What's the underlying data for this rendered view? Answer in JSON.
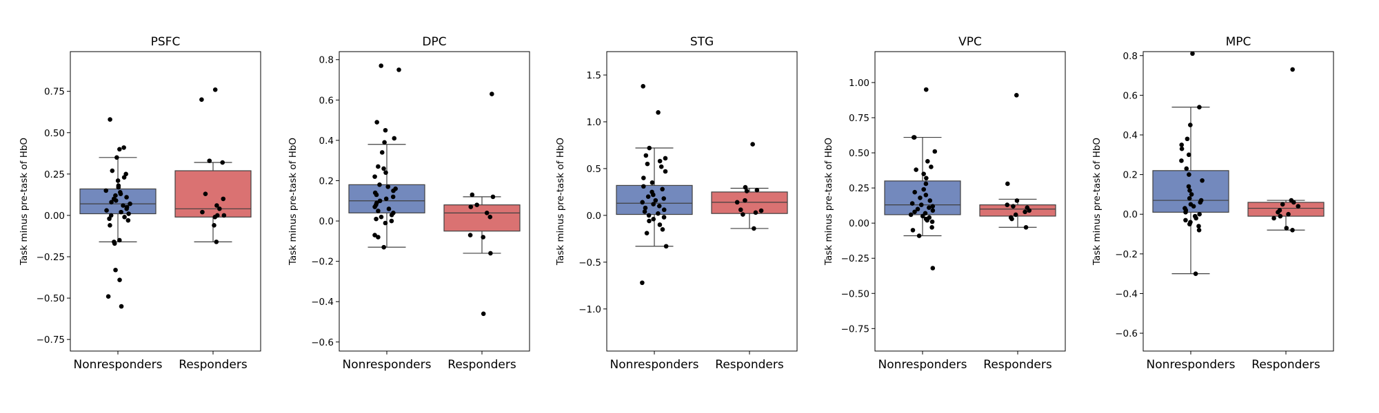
{
  "chart_data": [
    {
      "type": "box",
      "title": "PSFC",
      "ylabel": "Task minus pre-task of HbO",
      "categories": [
        "Nonresponders",
        "Responders"
      ],
      "ylim": [
        -0.82,
        0.99
      ],
      "yticks": [
        -0.75,
        -0.5,
        -0.25,
        0.0,
        0.25,
        0.5,
        0.75
      ],
      "ytick_labels": [
        "−0.75",
        "−0.50",
        "−0.25",
        "0.00",
        "0.25",
        "0.50",
        "0.75"
      ],
      "grid": false,
      "groups": [
        {
          "name": "Nonresponders",
          "color": "#7389bd",
          "box": {
            "q1": 0.01,
            "median": 0.07,
            "q3": 0.16,
            "whisker_low": -0.16,
            "whisker_high": 0.35
          },
          "points": [
            0.58,
            0.41,
            0.4,
            0.35,
            0.27,
            0.25,
            0.23,
            0.21,
            0.18,
            0.17,
            0.15,
            0.14,
            0.13,
            0.12,
            0.11,
            0.1,
            0.09,
            0.08,
            0.07,
            0.06,
            0.05,
            0.04,
            0.03,
            0.02,
            0.01,
            0.0,
            -0.01,
            -0.02,
            -0.03,
            -0.06,
            -0.16,
            -0.15,
            -0.17,
            -0.33,
            -0.39,
            -0.49,
            -0.55
          ]
        },
        {
          "name": "Responders",
          "color": "#da7272",
          "box": {
            "q1": -0.01,
            "median": 0.04,
            "q3": 0.27,
            "whisker_low": -0.16,
            "whisker_high": 0.32
          },
          "points": [
            0.76,
            0.7,
            0.33,
            0.32,
            0.13,
            0.1,
            0.06,
            0.04,
            0.02,
            0.0,
            0.0,
            -0.01,
            -0.06,
            -0.16
          ]
        }
      ]
    },
    {
      "type": "box",
      "title": "DPC",
      "ylabel": "Task minus pre-task of HbO",
      "categories": [
        "Nonresponders",
        "Responders"
      ],
      "ylim": [
        -0.645,
        0.84
      ],
      "yticks": [
        -0.6,
        -0.4,
        -0.2,
        0.0,
        0.2,
        0.4,
        0.6,
        0.8
      ],
      "ytick_labels": [
        "−0.6",
        "−0.4",
        "−0.2",
        "0.0",
        "0.2",
        "0.4",
        "0.6",
        "0.8"
      ],
      "grid": false,
      "groups": [
        {
          "name": "Nonresponders",
          "color": "#7389bd",
          "box": {
            "q1": 0.04,
            "median": 0.1,
            "q3": 0.18,
            "whisker_low": -0.13,
            "whisker_high": 0.38
          },
          "points": [
            0.77,
            0.75,
            0.49,
            0.45,
            0.41,
            0.39,
            0.34,
            0.27,
            0.26,
            0.24,
            0.22,
            0.18,
            0.17,
            0.16,
            0.15,
            0.14,
            0.13,
            0.12,
            0.11,
            0.1,
            0.09,
            0.08,
            0.07,
            0.06,
            0.05,
            0.04,
            0.03,
            0.02,
            0.01,
            0.0,
            -0.01,
            -0.07,
            -0.08,
            -0.13
          ]
        },
        {
          "name": "Responders",
          "color": "#da7272",
          "box": {
            "q1": -0.05,
            "median": 0.04,
            "q3": 0.08,
            "whisker_low": -0.16,
            "whisker_high": 0.12
          },
          "points": [
            0.63,
            0.13,
            0.12,
            0.08,
            0.07,
            0.04,
            0.02,
            -0.07,
            -0.08,
            -0.16,
            -0.46
          ]
        }
      ]
    },
    {
      "type": "box",
      "title": "STG",
      "ylabel": "Task minus pre-task of HbO",
      "categories": [
        "Nonresponders",
        "Responders"
      ],
      "ylim": [
        -1.45,
        1.75
      ],
      "yticks": [
        -1.0,
        -0.5,
        0.0,
        0.5,
        1.0,
        1.5
      ],
      "ytick_labels": [
        "−1.0",
        "−0.5",
        "0.0",
        "0.5",
        "1.0",
        "1.5"
      ],
      "grid": false,
      "groups": [
        {
          "name": "Nonresponders",
          "color": "#7389bd",
          "box": {
            "q1": 0.01,
            "median": 0.13,
            "q3": 0.32,
            "whisker_low": -0.33,
            "whisker_high": 0.72
          },
          "points": [
            1.38,
            1.1,
            0.72,
            0.64,
            0.61,
            0.58,
            0.55,
            0.52,
            0.47,
            0.4,
            0.35,
            0.31,
            0.28,
            0.25,
            0.22,
            0.2,
            0.18,
            0.16,
            0.14,
            0.12,
            0.1,
            0.08,
            0.06,
            0.04,
            0.02,
            0.0,
            -0.02,
            -0.04,
            -0.06,
            -0.1,
            -0.15,
            -0.19,
            -0.33,
            -0.72
          ]
        },
        {
          "name": "Responders",
          "color": "#da7272",
          "box": {
            "q1": 0.02,
            "median": 0.14,
            "q3": 0.25,
            "whisker_low": -0.14,
            "whisker_high": 0.29
          },
          "points": [
            0.76,
            0.3,
            0.27,
            0.26,
            0.16,
            0.14,
            0.06,
            0.05,
            0.03,
            0.01,
            -0.14
          ]
        }
      ]
    },
    {
      "type": "box",
      "title": "VPC",
      "ylabel": "Task minus pre-task of HbO",
      "categories": [
        "Nonresponders",
        "Responders"
      ],
      "ylim": [
        -0.91,
        1.22
      ],
      "yticks": [
        -0.75,
        -0.5,
        -0.25,
        0.0,
        0.25,
        0.5,
        0.75,
        1.0
      ],
      "ytick_labels": [
        "−0.75",
        "−0.50",
        "−0.25",
        "0.00",
        "0.25",
        "0.50",
        "0.75",
        "1.00"
      ],
      "grid": false,
      "groups": [
        {
          "name": "Nonresponders",
          "color": "#7389bd",
          "box": {
            "q1": 0.06,
            "median": 0.13,
            "q3": 0.3,
            "whisker_low": -0.09,
            "whisker_high": 0.61
          },
          "points": [
            0.95,
            0.61,
            0.61,
            0.51,
            0.44,
            0.4,
            0.38,
            0.35,
            0.32,
            0.28,
            0.24,
            0.22,
            0.2,
            0.18,
            0.16,
            0.14,
            0.13,
            0.12,
            0.11,
            0.1,
            0.09,
            0.08,
            0.07,
            0.06,
            0.05,
            0.04,
            0.03,
            0.02,
            0.01,
            -0.03,
            -0.05,
            -0.09,
            -0.32
          ]
        },
        {
          "name": "Responders",
          "color": "#da7272",
          "box": {
            "q1": 0.05,
            "median": 0.1,
            "q3": 0.13,
            "whisker_low": -0.03,
            "whisker_high": 0.17
          },
          "points": [
            0.91,
            0.28,
            0.16,
            0.13,
            0.12,
            0.11,
            0.09,
            0.08,
            0.06,
            0.04,
            0.03,
            -0.03
          ]
        }
      ]
    },
    {
      "type": "box",
      "title": "MPC",
      "ylabel": "Task minus pre-task of HbO",
      "categories": [
        "Nonresponders",
        "Responders"
      ],
      "ylim": [
        -0.69,
        0.82
      ],
      "yticks": [
        -0.6,
        -0.4,
        -0.2,
        0.0,
        0.2,
        0.4,
        0.6,
        0.8
      ],
      "ytick_labels": [
        "−0.6",
        "−0.4",
        "−0.2",
        "0.0",
        "0.2",
        "0.4",
        "0.6",
        "0.8"
      ],
      "grid": false,
      "groups": [
        {
          "name": "Nonresponders",
          "color": "#7389bd",
          "box": {
            "q1": 0.01,
            "median": 0.07,
            "q3": 0.22,
            "whisker_low": -0.3,
            "whisker_high": 0.54
          },
          "points": [
            0.81,
            0.54,
            0.45,
            0.38,
            0.35,
            0.33,
            0.3,
            0.27,
            0.23,
            0.2,
            0.17,
            0.14,
            0.12,
            0.1,
            0.08,
            0.07,
            0.06,
            0.05,
            0.04,
            0.03,
            0.02,
            0.01,
            0.0,
            -0.01,
            -0.02,
            -0.03,
            -0.04,
            -0.05,
            -0.06,
            -0.08,
            -0.3
          ]
        },
        {
          "name": "Responders",
          "color": "#da7272",
          "box": {
            "q1": -0.01,
            "median": 0.03,
            "q3": 0.06,
            "whisker_low": -0.08,
            "whisker_high": 0.07
          },
          "points": [
            0.73,
            0.07,
            0.06,
            0.05,
            0.04,
            0.02,
            0.01,
            0.0,
            -0.01,
            -0.02,
            -0.07,
            -0.08
          ]
        }
      ]
    }
  ]
}
